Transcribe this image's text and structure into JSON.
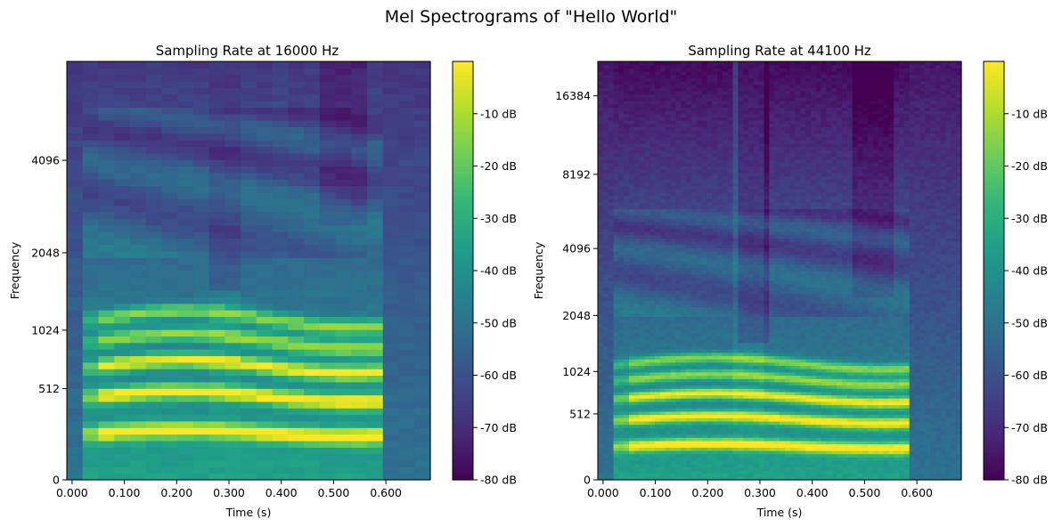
{
  "figure": {
    "suptitle": "Mel Spectrograms of \"Hello World\""
  },
  "colormap": {
    "name": "viridis",
    "stops": [
      "#440154",
      "#482878",
      "#3e4989",
      "#31688e",
      "#26828e",
      "#1f9e89",
      "#35b779",
      "#6ece58",
      "#b5de2b",
      "#fde725"
    ]
  },
  "chart_data": [
    {
      "type": "heatmap",
      "title": "Sampling Rate at 16000 Hz",
      "xlabel": "Time (s)",
      "ylabel": "Frequency",
      "x_ticks": [
        "0.000",
        "0.100",
        "0.200",
        "0.300",
        "0.400",
        "0.500",
        "0.600"
      ],
      "x_tick_values": [
        0.0,
        0.1,
        0.2,
        0.3,
        0.4,
        0.5,
        0.6
      ],
      "xlim": [
        -0.01,
        0.685
      ],
      "y_scale": "mel",
      "y_ticks": [
        "0",
        "512",
        "1024",
        "2048",
        "4096"
      ],
      "y_tick_values": [
        0,
        512,
        1024,
        2048,
        4096
      ],
      "ylim_hz": [
        0,
        8000
      ],
      "duration_s": 0.58,
      "formants_hz": [
        230,
        460,
        690,
        920,
        1150
      ],
      "colorbar_ticks": [
        "-10 dB",
        "-20 dB",
        "-30 dB",
        "-40 dB",
        "-50 dB",
        "-60 dB",
        "-70 dB",
        "-80 dB"
      ],
      "colorbar_values": [
        -10,
        -20,
        -30,
        -40,
        -50,
        -60,
        -70,
        -80
      ],
      "clim_db": [
        -80,
        0
      ],
      "n_time_frames": 23,
      "n_mel_bins": 64
    },
    {
      "type": "heatmap",
      "title": "Sampling Rate at 44100 Hz",
      "xlabel": "Time (s)",
      "ylabel": "Frequency",
      "x_ticks": [
        "0.000",
        "0.100",
        "0.200",
        "0.300",
        "0.400",
        "0.500",
        "0.600"
      ],
      "x_tick_values": [
        0.0,
        0.1,
        0.2,
        0.3,
        0.4,
        0.5,
        0.6
      ],
      "xlim": [
        -0.01,
        0.685
      ],
      "y_scale": "mel",
      "y_ticks": [
        "0",
        "512",
        "1024",
        "2048",
        "4096",
        "8192",
        "16384"
      ],
      "y_tick_values": [
        0,
        512,
        1024,
        2048,
        4096,
        8192,
        16384
      ],
      "ylim_hz": [
        0,
        22050
      ],
      "duration_s": 0.58,
      "formants_hz": [
        230,
        460,
        690,
        920,
        1150
      ],
      "colorbar_ticks": [
        "-10 dB",
        "-20 dB",
        "-30 dB",
        "-40 dB",
        "-50 dB",
        "-60 dB",
        "-70 dB",
        "-80 dB"
      ],
      "colorbar_values": [
        -10,
        -20,
        -30,
        -40,
        -50,
        -60,
        -70,
        -80
      ],
      "clim_db": [
        -80,
        0
      ],
      "n_time_frames": 70,
      "n_mel_bins": 128
    }
  ]
}
